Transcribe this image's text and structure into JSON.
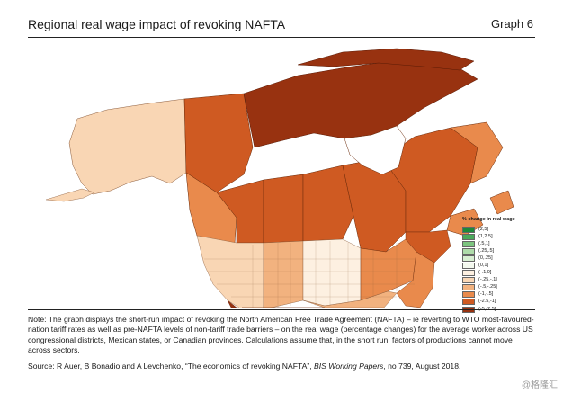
{
  "header": {
    "title": "Regional real wage impact of revoking NAFTA",
    "graph_label": "Graph 6"
  },
  "legend": {
    "title": "% change in real wage",
    "items": [
      {
        "label": "(2,5]",
        "color": "#1e8a3a"
      },
      {
        "label": "(1,2.5]",
        "color": "#4aa95a"
      },
      {
        "label": "(.5,1]",
        "color": "#7cc47f"
      },
      {
        "label": "(.25,.5]",
        "color": "#aedba9"
      },
      {
        "label": "(0,.25]",
        "color": "#d8efd2"
      },
      {
        "label": "(0,1]",
        "color": "#f4f9ef"
      },
      {
        "label": "(-.1,0]",
        "color": "#fdf0e1"
      },
      {
        "label": "(-.25,-.1]",
        "color": "#f9d6b4"
      },
      {
        "label": "(-.5,-.25]",
        "color": "#f2b27f"
      },
      {
        "label": "(-1,-.5]",
        "color": "#e98a4c"
      },
      {
        "label": "(-2.5,-1]",
        "color": "#cf5a22"
      },
      {
        "label": "(-5,-2.5]",
        "color": "#983210"
      }
    ]
  },
  "note": {
    "text": "Note: The graph displays the short-run impact of revoking the North American Free Trade Agreement (NAFTA) – ie reverting to WTO most-favoured-nation tariff rates as well as pre-NAFTA levels of non-tariff trade barriers – on the real wage (percentage changes) for the average worker across US congressional districts, Mexican states, or Canadian provinces. Calculations assume that, in the short run, factors of productions cannot move across sectors."
  },
  "source": {
    "prefix": "Source: R Auer, B Bonadio and A Levchenko, “The economics of revoking NAFTA”, ",
    "series": "BIS Working Papers",
    "suffix": ", no 739, August 2018."
  },
  "watermark": "@格隆汇"
}
